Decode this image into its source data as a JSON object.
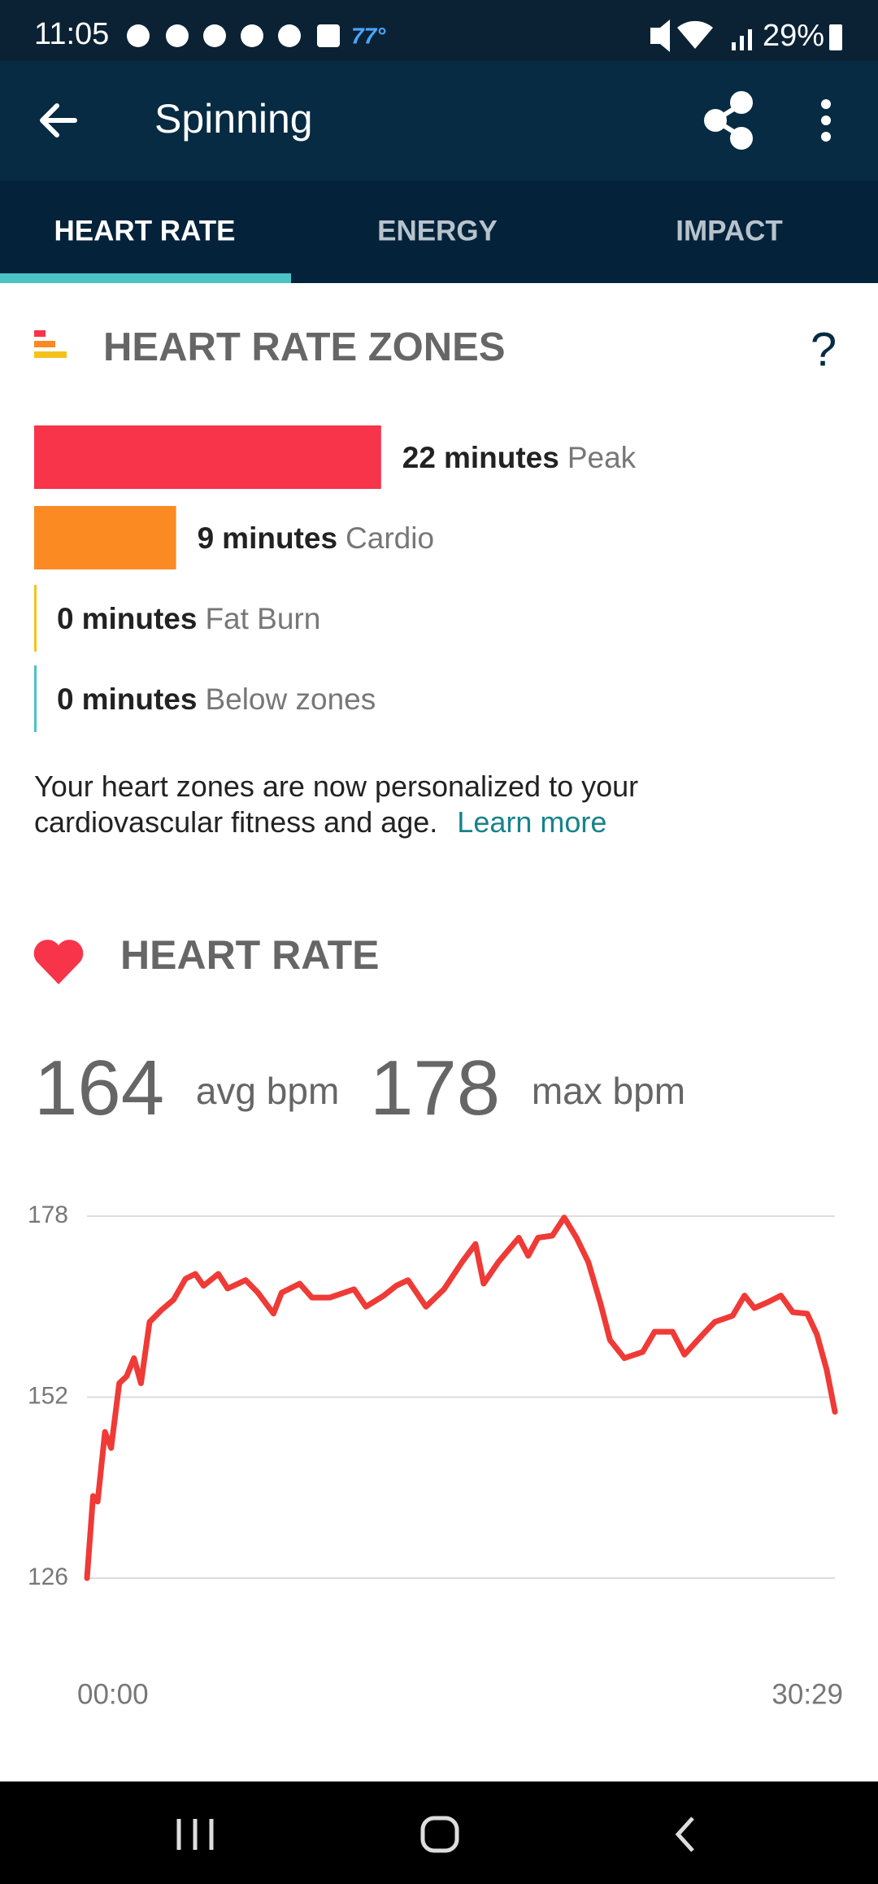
{
  "status_bar": {
    "time": "11:05",
    "temperature": "77°",
    "battery": "29%"
  },
  "app_bar": {
    "title": "Spinning"
  },
  "tabs": [
    "HEART RATE",
    "ENERGY",
    "IMPACT"
  ],
  "zones": {
    "title": "HEART RATE ZONES",
    "help": "?",
    "unit": "minutes",
    "items": [
      {
        "minutes": 22,
        "name": "Peak",
        "color": "#f7344a"
      },
      {
        "minutes": 9,
        "name": "Cardio",
        "color": "#fb8a23"
      },
      {
        "minutes": 0,
        "name": "Fat Burn",
        "color": "#f5c21b"
      },
      {
        "minutes": 0,
        "name": "Below zones",
        "color": "#4cc3c4"
      }
    ]
  },
  "note": {
    "text": "Your heart zones are now personalized to your cardiovascular fitness and age.",
    "link": "Learn more"
  },
  "heart_rate": {
    "title": "HEART RATE",
    "avg": 164,
    "avg_label": "avg bpm",
    "max": 178,
    "max_label": "max bpm"
  },
  "chart_data": {
    "type": "line",
    "x": [
      0,
      15,
      26,
      44,
      59,
      79,
      97,
      115,
      132,
      153,
      182,
      212,
      241,
      265,
      285,
      321,
      344,
      388,
      418,
      456,
      476,
      520,
      550,
      594,
      653,
      682,
      726,
      756,
      785,
      829,
      873,
      917,
      950,
      970,
      1006,
      1056,
      1079,
      1103,
      1138,
      1167,
      1197,
      1226,
      1256,
      1279,
      1314,
      1359,
      1388,
      1432,
      1461,
      1506,
      1535,
      1579,
      1608,
      1632,
      1667,
      1697,
      1726,
      1761,
      1785,
      1809,
      1829
    ],
    "series": [
      {
        "color": "#ef3a36",
        "values": [
          126,
          137.8,
          137,
          147,
          144.7,
          154,
          155,
          157.6,
          154,
          162.8,
          164.5,
          166,
          169,
          169.7,
          168,
          169.7,
          167.6,
          168.8,
          167,
          164,
          167,
          168.3,
          166.3,
          166.3,
          167.5,
          165,
          166.6,
          168,
          168.8,
          165,
          167.5,
          171.4,
          174,
          168.3,
          171.4,
          174.9,
          172.3,
          174.9,
          175.2,
          177.8,
          174.9,
          171.4,
          165.4,
          160.2,
          157.6,
          158.5,
          161.4,
          161.4,
          158.1,
          161,
          162.8,
          163.7,
          166.6,
          164.8,
          165.7,
          166.6,
          164.2,
          164,
          161,
          155.9,
          149.9
        ]
      }
    ],
    "xlim": [
      0,
      1829
    ],
    "xticks": [
      {
        "value": 0,
        "label": "00:00"
      },
      {
        "value": 1829,
        "label": "30:29"
      }
    ],
    "ylim": [
      126,
      178
    ],
    "yticks": [
      126,
      152,
      178
    ],
    "grid": true
  }
}
